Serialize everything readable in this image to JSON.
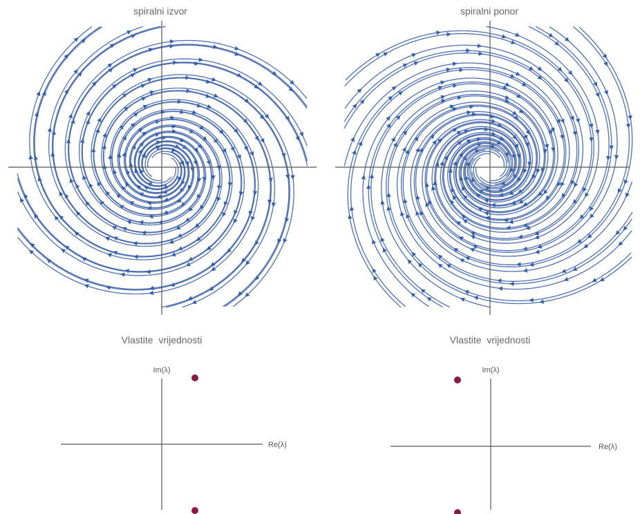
{
  "panels": [
    {
      "title": "spiralni izvor",
      "kind": "source",
      "eigen_title": "Vlastite  vrijednosti",
      "im_label": "Im(λ)",
      "re_label": "Re(λ)",
      "eigenvalues": [
        {
          "re": 1,
          "im": 2
        },
        {
          "re": 1,
          "im": -2
        }
      ]
    },
    {
      "title": "spiralni ponor",
      "kind": "sink",
      "eigen_title": "Vlastite  vrijednosti",
      "im_label": "Im(λ)",
      "re_label": "Re(λ)",
      "eigenvalues": [
        {
          "re": -1,
          "im": 2
        },
        {
          "re": -1,
          "im": -2
        }
      ]
    }
  ],
  "colors": {
    "flow": "#4e6fb0",
    "arrow": "#3560a8",
    "eigen_point": "#8b1a4a",
    "axis": "#555555",
    "text": "#666666"
  }
}
